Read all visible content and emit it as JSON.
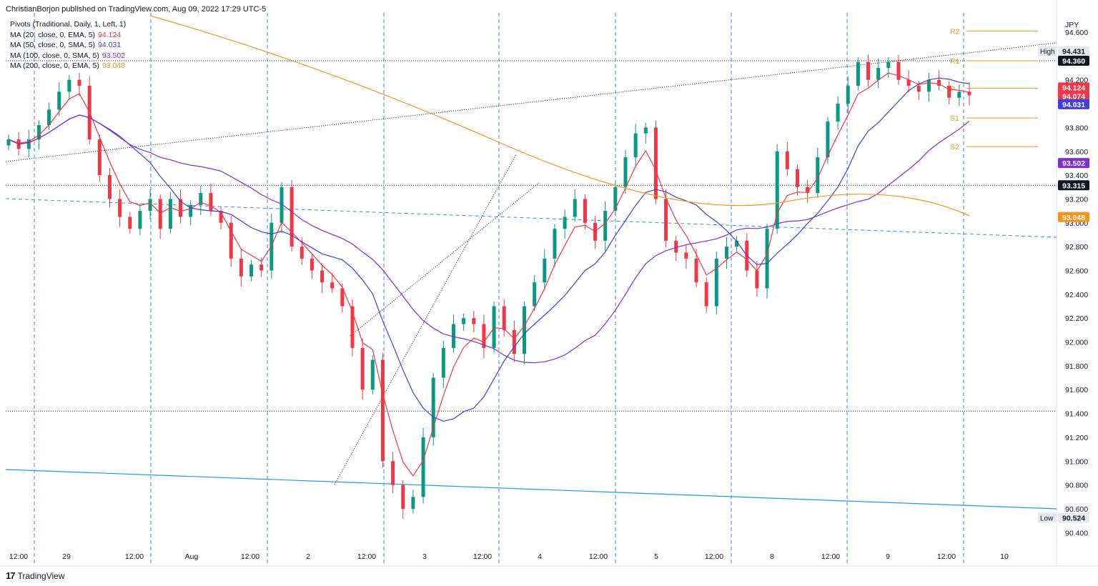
{
  "header": {
    "author": "ChristianBorjon",
    "published_text": "published on TradingView.com, Aug 09, 2022 17:29 UTC-5"
  },
  "legend": [
    {
      "text": "Pivots (Traditional, Daily, 1, Left, 1)",
      "value": "",
      "color": "#131722"
    },
    {
      "text": "MA (20, close, 0, EMA, 5)",
      "value": "94.124",
      "color": "#f23645"
    },
    {
      "text": "MA (50, close, 0, SMA, 5)",
      "value": "94.031",
      "color": "#3f3fe0"
    },
    {
      "text": "MA (100, close, 0, SMA, 5)",
      "value": "93.502",
      "color": "#7b2fd6"
    },
    {
      "text": "MA (200, close, 0, EMA, 5)",
      "value": "93.048",
      "color": "#f7931a"
    }
  ],
  "footer": {
    "logo": "17",
    "brand": "TradingView"
  },
  "chart_data": {
    "type": "candlestick",
    "symbol_currency": "JPY",
    "y_range": [
      90.3,
      94.75
    ],
    "y_ticks": [
      "94.600",
      "94.400",
      "94.200",
      "94.000",
      "93.800",
      "93.600",
      "93.400",
      "93.200",
      "93.000",
      "92.800",
      "92.600",
      "92.400",
      "92.200",
      "92.000",
      "91.800",
      "91.600",
      "91.400",
      "91.200",
      "91.000",
      "90.800",
      "90.600",
      "90.400"
    ],
    "x_ticks": [
      "12:00",
      "29",
      "12:00",
      "Aug",
      "12:00",
      "2",
      "12:00",
      "3",
      "12:00",
      "4",
      "12:00",
      "5",
      "12:00",
      "8",
      "12:00",
      "9",
      "12:00",
      "10"
    ],
    "pivots": [
      {
        "label": "R2",
        "value": 94.61
      },
      {
        "label": "R1",
        "value": 94.36
      },
      {
        "label": "P",
        "value": 94.13
      },
      {
        "label": "S1",
        "value": 93.88
      },
      {
        "label": "S2",
        "value": 93.64
      }
    ],
    "price_badges": [
      {
        "label": "High",
        "value": "94.431",
        "bg": "#e6e8ee",
        "fg": "#131722"
      },
      {
        "label": "",
        "value": "94.360",
        "bg": "#131722",
        "fg": "#ffffff"
      },
      {
        "label": "",
        "value": "94.124",
        "bg": "#f23645",
        "fg": "#ffffff"
      },
      {
        "label": "",
        "value": "94.074",
        "bg": "#f23645",
        "fg": "#ffffff"
      },
      {
        "label": "",
        "value": "94.031",
        "bg": "#3f3fe0",
        "fg": "#ffffff"
      },
      {
        "label": "",
        "value": "93.502",
        "bg": "#7b2fd6",
        "fg": "#ffffff"
      },
      {
        "label": "",
        "value": "93.315",
        "bg": "#131722",
        "fg": "#ffffff"
      },
      {
        "label": "",
        "value": "93.048",
        "bg": "#f7931a",
        "fg": "#ffffff"
      },
      {
        "label": "Low",
        "value": "90.524",
        "bg": "#e6e8ee",
        "fg": "#131722"
      }
    ],
    "horizontal_levels": [
      94.36,
      93.315,
      91.42
    ],
    "close_path": [
      93.7,
      93.62,
      93.7,
      93.82,
      93.95,
      94.1,
      94.2,
      94.15,
      93.7,
      93.4,
      93.2,
      93.05,
      92.95,
      93.1,
      93.2,
      92.95,
      93.2,
      93.05,
      93.15,
      93.25,
      93.1,
      93.0,
      92.7,
      92.55,
      92.65,
      92.6,
      93.0,
      93.3,
      92.8,
      92.7,
      92.6,
      92.5,
      92.45,
      92.3,
      91.95,
      91.6,
      91.85,
      91.0,
      90.8,
      90.6,
      90.7,
      91.2,
      91.7,
      91.95,
      92.15,
      92.2,
      92.15,
      91.95,
      92.3,
      92.1,
      91.9,
      92.3,
      92.5,
      92.7,
      92.95,
      93.05,
      93.2,
      93.0,
      92.85,
      93.1,
      93.3,
      93.55,
      93.75,
      93.8,
      93.2,
      92.85,
      92.75,
      92.7,
      92.5,
      92.3,
      92.7,
      92.8,
      92.85,
      92.6,
      92.45,
      92.95,
      93.6,
      93.45,
      93.3,
      93.25,
      93.55,
      93.85,
      94.0,
      94.15,
      94.35,
      94.2,
      94.3,
      94.35,
      94.2,
      94.15,
      94.1,
      94.2,
      94.15,
      94.05,
      94.1,
      94.07
    ]
  }
}
